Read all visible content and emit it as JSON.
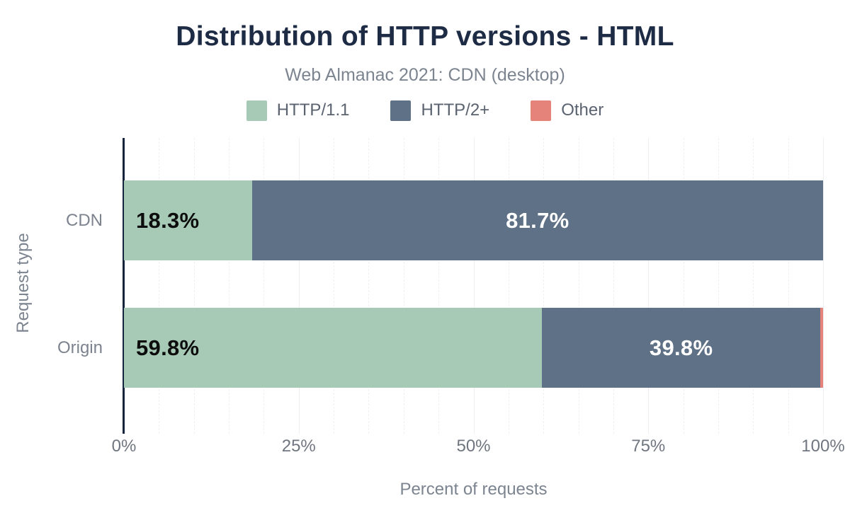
{
  "header": {
    "title": "Distribution of HTTP versions - HTML",
    "subtitle": "Web Almanac 2021: CDN (desktop)"
  },
  "legend": {
    "items": [
      {
        "label": "HTTP/1.1",
        "color": "#a6cab6"
      },
      {
        "label": "HTTP/2+",
        "color": "#5f7186"
      },
      {
        "label": "Other",
        "color": "#e5827a"
      }
    ]
  },
  "chart_data": {
    "type": "bar",
    "orientation": "horizontal",
    "stacked": true,
    "title": "Distribution of HTTP versions - HTML",
    "subtitle": "Web Almanac 2021: CDN (desktop)",
    "categories": [
      "CDN",
      "Origin"
    ],
    "series": [
      {
        "name": "HTTP/1.1",
        "color": "#a6cab6",
        "values": [
          18.3,
          59.8
        ],
        "data_labels": [
          "18.3%",
          "59.8%"
        ],
        "label_color": "#0d0d0d",
        "label_align": "left"
      },
      {
        "name": "HTTP/2+",
        "color": "#5f7186",
        "values": [
          81.7,
          39.8
        ],
        "data_labels": [
          "81.7%",
          "39.8%"
        ],
        "label_color": "#ffffff",
        "label_align": "center"
      },
      {
        "name": "Other",
        "color": "#e5827a",
        "values": [
          0,
          0.4
        ],
        "data_labels": [
          "",
          ""
        ],
        "label_color": "#ffffff",
        "label_align": "center"
      }
    ],
    "xlabel": "Percent of requests",
    "ylabel": "Request type",
    "xlim": [
      0,
      100
    ],
    "x_ticks": [
      {
        "value": 0,
        "label": "0%"
      },
      {
        "value": 25,
        "label": "25%"
      },
      {
        "value": 50,
        "label": "50%"
      },
      {
        "value": 75,
        "label": "75%"
      },
      {
        "value": 100,
        "label": "100%"
      }
    ],
    "grid": {
      "direction": "vertical",
      "minor_step": 5,
      "major_step": 25
    },
    "legend_position": "top"
  },
  "colors": {
    "title_text": "#1e2b45",
    "subtitle_text": "#7c8490",
    "axis_line": "#16233c",
    "tick_text": "#70767f",
    "category_text": "#7d838e",
    "legend_text": "#5b6370"
  }
}
